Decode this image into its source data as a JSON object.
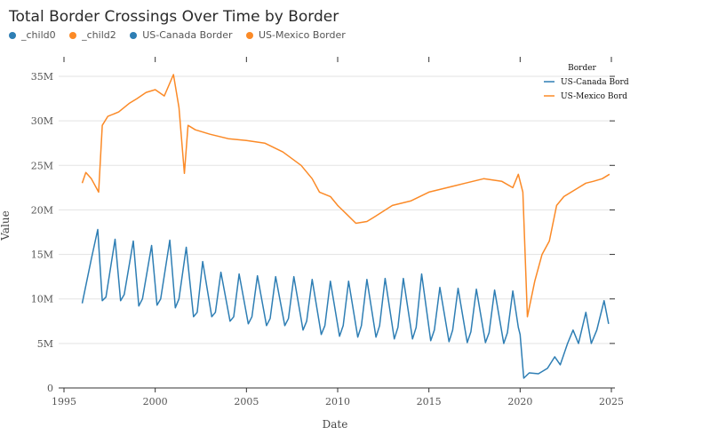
{
  "title": "Total Border Crossings Over Time by Border",
  "colors": {
    "canada": "#2e7eb4",
    "mexico": "#fb8a27"
  },
  "top_legend": [
    {
      "label": "_child0",
      "color": "#2e7eb4"
    },
    {
      "label": "_child2",
      "color": "#fb8a27"
    },
    {
      "label": "US-Canada Border",
      "color": "#2e7eb4"
    },
    {
      "label": "US-Mexico Border",
      "color": "#fb8a27"
    }
  ],
  "chart_data": {
    "type": "line",
    "xlabel": "Date",
    "ylabel": "Value",
    "xlim": [
      1995,
      2025
    ],
    "ylim": [
      0,
      35000000
    ],
    "x_ticks": [
      1995,
      2000,
      2005,
      2010,
      2015,
      2020,
      2025
    ],
    "y_ticks": [
      {
        "value": 0,
        "label": "0"
      },
      {
        "value": 5000000,
        "label": "5M"
      },
      {
        "value": 10000000,
        "label": "10M"
      },
      {
        "value": 15000000,
        "label": "15M"
      },
      {
        "value": 20000000,
        "label": "20M"
      },
      {
        "value": 25000000,
        "label": "25M"
      },
      {
        "value": 30000000,
        "label": "30M"
      },
      {
        "value": 35000000,
        "label": "35M"
      }
    ],
    "grid": "horizontal",
    "legend_title": "Border",
    "legend_position": "top-right",
    "legend_labels": [
      "US-Canada Bord",
      "US-Mexico Bord"
    ],
    "series": [
      {
        "name": "US-Canada Border",
        "color": "#2e7eb4",
        "x": [
          1996.0,
          1996.5,
          1996.85,
          1997.1,
          1997.3,
          1997.8,
          1998.1,
          1998.3,
          1998.8,
          1999.1,
          1999.3,
          1999.8,
          2000.1,
          2000.3,
          2000.8,
          2001.1,
          2001.3,
          2001.7,
          2002.1,
          2002.3,
          2002.6,
          2003.1,
          2003.3,
          2003.6,
          2004.1,
          2004.3,
          2004.6,
          2005.1,
          2005.3,
          2005.6,
          2006.1,
          2006.3,
          2006.6,
          2007.1,
          2007.3,
          2007.6,
          2008.1,
          2008.3,
          2008.6,
          2009.1,
          2009.3,
          2009.6,
          2010.1,
          2010.3,
          2010.6,
          2011.1,
          2011.3,
          2011.6,
          2012.1,
          2012.3,
          2012.6,
          2013.1,
          2013.3,
          2013.6,
          2014.1,
          2014.3,
          2014.6,
          2015.1,
          2015.3,
          2015.6,
          2016.1,
          2016.3,
          2016.6,
          2017.1,
          2017.3,
          2017.6,
          2018.1,
          2018.3,
          2018.6,
          2019.1,
          2019.3,
          2019.6,
          2019.9,
          2020.0,
          2020.2,
          2020.5,
          2021.0,
          2021.5,
          2021.9,
          2022.2,
          2022.6,
          2022.9,
          2023.2,
          2023.6,
          2023.9,
          2024.2,
          2024.6,
          2024.85
        ],
        "y": [
          9500000,
          14500000,
          17800000,
          9800000,
          10200000,
          16700000,
          9800000,
          10500000,
          16500000,
          9200000,
          10000000,
          16000000,
          9300000,
          10000000,
          16600000,
          9000000,
          10000000,
          15800000,
          8000000,
          8500000,
          14200000,
          8000000,
          8500000,
          13000000,
          7500000,
          8000000,
          12800000,
          7200000,
          8000000,
          12600000,
          7000000,
          7800000,
          12500000,
          7000000,
          7800000,
          12500000,
          6500000,
          7500000,
          12200000,
          6000000,
          7000000,
          12000000,
          5800000,
          7000000,
          12000000,
          5700000,
          7000000,
          12200000,
          5700000,
          7000000,
          12300000,
          5500000,
          6800000,
          12300000,
          5500000,
          6800000,
          12800000,
          5300000,
          6500000,
          11300000,
          5200000,
          6500000,
          11200000,
          5100000,
          6300000,
          11100000,
          5100000,
          6200000,
          11000000,
          5000000,
          6200000,
          10900000,
          6800000,
          6000000,
          1100000,
          1700000,
          1600000,
          2200000,
          3500000,
          2600000,
          5000000,
          6500000,
          5000000,
          8500000,
          5000000,
          6500000,
          9800000,
          7200000
        ]
      },
      {
        "name": "US-Mexico Border",
        "color": "#fb8a27",
        "x": [
          1996.0,
          1996.2,
          1996.5,
          1996.9,
          1997.1,
          1997.4,
          1998.0,
          1998.6,
          1999.0,
          1999.5,
          2000.0,
          2000.5,
          2001.0,
          2001.3,
          2001.6,
          2001.8,
          2002.2,
          2003.0,
          2004.0,
          2005.0,
          2006.0,
          2007.0,
          2008.0,
          2008.6,
          2009.0,
          2009.6,
          2010.0,
          2010.5,
          2011.0,
          2011.6,
          2012.0,
          2013.0,
          2014.0,
          2015.0,
          2016.0,
          2017.0,
          2018.0,
          2019.0,
          2019.6,
          2019.9,
          2020.15,
          2020.4,
          2020.8,
          2021.2,
          2021.6,
          2022.0,
          2022.4,
          2022.8,
          2023.2,
          2023.6,
          2024.0,
          2024.5,
          2024.9
        ],
        "y": [
          23000000,
          24200000,
          23500000,
          22000000,
          29500000,
          30500000,
          31000000,
          32000000,
          32500000,
          33200000,
          33500000,
          32800000,
          35200000,
          31500000,
          24100000,
          29500000,
          29000000,
          28500000,
          28000000,
          27800000,
          27500000,
          26500000,
          25000000,
          23500000,
          22000000,
          21500000,
          20500000,
          19500000,
          18500000,
          18700000,
          19200000,
          20500000,
          21000000,
          22000000,
          22500000,
          23000000,
          23500000,
          23200000,
          22500000,
          24000000,
          22000000,
          8000000,
          12000000,
          15000000,
          16500000,
          20500000,
          21500000,
          22000000,
          22500000,
          23000000,
          23200000,
          23500000,
          24000000
        ]
      }
    ]
  }
}
